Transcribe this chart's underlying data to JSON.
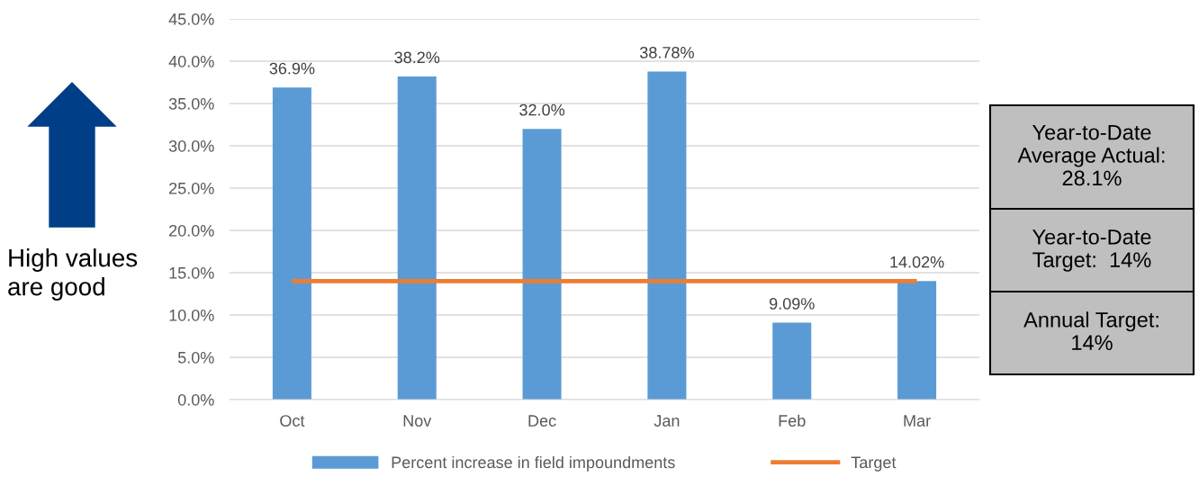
{
  "chart_data": {
    "type": "bar",
    "categories": [
      "Oct",
      "Nov",
      "Dec",
      "Jan",
      "Feb",
      "Mar"
    ],
    "series": [
      {
        "name": "Percent increase in field impoundments",
        "color": "#5b9bd5",
        "values": [
          36.9,
          38.2,
          32.0,
          38.78,
          9.09,
          14.02
        ],
        "value_labels": [
          "36.9%",
          "38.2%",
          "32.0%",
          "38.78%",
          "9.09%",
          "14.02%"
        ]
      },
      {
        "name": "Target",
        "type": "line",
        "color": "#ed7d31",
        "values": [
          14,
          14,
          14,
          14,
          14,
          14
        ]
      }
    ],
    "ylim": [
      0,
      45
    ],
    "yticks": [
      {
        "value": 0,
        "label": "0.0%"
      },
      {
        "value": 5,
        "label": "5.0%"
      },
      {
        "value": 10,
        "label": "10.0%"
      },
      {
        "value": 15,
        "label": "15.0%"
      },
      {
        "value": 20,
        "label": "20.0%"
      },
      {
        "value": 25,
        "label": "25.0%"
      },
      {
        "value": 30,
        "label": "30.0%"
      },
      {
        "value": 35,
        "label": "35.0%"
      },
      {
        "value": 40,
        "label": "40.0%"
      },
      {
        "value": 45,
        "label": "45.0%"
      }
    ],
    "grid": "y",
    "legend": "bottom",
    "annotations": [
      "High values\nare good",
      "Year-to-Date\nAverage Actual:\n28.1%",
      "Year-to-Date\nTarget:  14%",
      "Annual Target:\n14%"
    ]
  }
}
